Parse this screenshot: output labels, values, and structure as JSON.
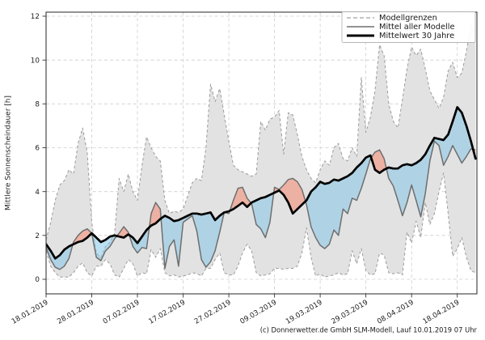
{
  "figure": {
    "background": "#ffffff"
  },
  "footer": {
    "text": "(c) Donnerwetter.de GmbH SLM-Modell, Lauf 10.01.2019 07 Uhr"
  },
  "legend": {
    "position": "top-right",
    "items": [
      {
        "label": "Modellgrenzen",
        "style": "dashed-gray"
      },
      {
        "label": "Mittel aller Modelle",
        "style": "solid-gray"
      },
      {
        "label": "Mittelwert 30 Jahre",
        "style": "solid-black-thick"
      }
    ]
  },
  "chart_data": {
    "type": "line",
    "title": "",
    "xlabel": "",
    "ylabel": "Mittlere Sonnenscheindauer [h]",
    "grid": true,
    "legend_position": "top-right",
    "ylim": [
      -0.7,
      12.2
    ],
    "y_ticks": [
      0,
      2,
      4,
      6,
      8,
      10,
      12
    ],
    "x_unit": "days, daily values from 18.01.2019 to 22.04.2019",
    "x_tick_days": [
      0,
      10,
      20,
      30,
      40,
      50,
      60,
      70,
      80,
      90
    ],
    "x_tick_labels": [
      "18.01.2019",
      "28.01.2019",
      "07.02.2019",
      "17.02.2019",
      "27.02.2019",
      "09.03.2019",
      "19.03.2019",
      "29.03.2019",
      "08.04.2019",
      "18.04.2019"
    ],
    "series": [
      {
        "name": "Modellgrenzen (oberes Band)",
        "role": "envelope-max",
        "values": [
          1.8,
          2.6,
          3.6,
          4.3,
          4.5,
          5.0,
          4.8,
          6.2,
          6.9,
          5.8,
          2.6,
          1.2,
          1.0,
          1.5,
          1.7,
          2.1,
          4.6,
          4.0,
          4.8,
          4.0,
          3.6,
          5.2,
          6.5,
          6.0,
          5.6,
          5.4,
          3.6,
          3.0,
          3.1,
          3.05,
          3.2,
          3.8,
          4.4,
          4.6,
          4.5,
          6.0,
          8.9,
          8.1,
          8.7,
          7.5,
          6.3,
          5.2,
          5.0,
          4.9,
          4.8,
          4.7,
          4.8,
          7.2,
          6.8,
          7.3,
          7.4,
          7.7,
          5.7,
          7.6,
          7.5,
          6.6,
          5.6,
          5.0,
          4.6,
          4.4,
          5.0,
          5.4,
          5.2,
          6.0,
          6.2,
          5.5,
          5.4,
          6.0,
          5.6,
          9.2,
          6.7,
          7.4,
          8.6,
          10.7,
          10.2,
          8.0,
          7.2,
          6.9,
          8.2,
          9.6,
          10.6,
          10.2,
          10.5,
          9.6,
          8.6,
          8.2,
          7.8,
          8.3,
          9.5,
          9.9,
          9.2,
          9.4,
          10.4,
          11.6,
          11.3
        ]
      },
      {
        "name": "Modellgrenzen (unteres Band)",
        "role": "envelope-min",
        "values": [
          1.3,
          0.6,
          0.3,
          0.1,
          0.1,
          0.1,
          0.3,
          0.6,
          0.75,
          0.3,
          0.15,
          0.6,
          0.6,
          0.9,
          0.7,
          0.2,
          0.1,
          0.5,
          0.9,
          0.7,
          0.15,
          0.3,
          0.25,
          1.35,
          1.0,
          1.4,
          0.3,
          0.15,
          0.2,
          0.1,
          0.15,
          0.2,
          0.3,
          0.25,
          0.15,
          0.5,
          0.5,
          0.9,
          1.2,
          0.3,
          0.2,
          0.2,
          0.6,
          1.2,
          1.6,
          1.3,
          0.3,
          0.15,
          0.2,
          0.25,
          0.5,
          0.5,
          0.45,
          0.5,
          0.5,
          0.6,
          1.2,
          2.35,
          1.0,
          0.15,
          0.25,
          0.1,
          0.15,
          0.2,
          0.3,
          0.2,
          0.25,
          1.3,
          0.7,
          1.4,
          0.4,
          0.2,
          0.25,
          1.2,
          1.1,
          0.3,
          0.25,
          0.3,
          0.2,
          2.15,
          1.65,
          2.65,
          1.9,
          3.5,
          2.5,
          3.0,
          4.0,
          4.85,
          3.0,
          1.05,
          1.4,
          1.9,
          1.0,
          0.4,
          0.3
        ]
      },
      {
        "name": "Mittel aller Modelle",
        "role": "model-mean",
        "values": [
          1.45,
          0.9,
          0.55,
          0.45,
          0.6,
          0.95,
          1.7,
          2.0,
          2.2,
          2.3,
          2.1,
          1.0,
          0.85,
          1.3,
          1.5,
          1.85,
          2.1,
          2.4,
          2.15,
          1.5,
          1.2,
          1.45,
          1.4,
          3.0,
          3.5,
          3.2,
          0.5,
          1.5,
          1.8,
          0.6,
          2.6,
          2.75,
          2.9,
          2.2,
          0.9,
          0.55,
          0.8,
          1.3,
          2.15,
          3.05,
          3.0,
          3.6,
          4.15,
          4.2,
          3.7,
          3.45,
          2.5,
          2.3,
          1.9,
          2.6,
          4.2,
          4.1,
          4.3,
          4.55,
          4.6,
          4.45,
          4.1,
          3.4,
          2.4,
          1.9,
          1.55,
          1.4,
          1.6,
          2.25,
          2.0,
          3.2,
          3.0,
          3.7,
          3.6,
          4.15,
          4.8,
          5.5,
          5.8,
          5.9,
          5.5,
          4.6,
          4.25,
          3.6,
          2.9,
          3.5,
          4.3,
          3.6,
          2.85,
          3.9,
          5.4,
          6.3,
          6.1,
          5.2,
          5.6,
          6.1,
          5.7,
          5.3,
          5.6,
          5.95,
          5.9
        ]
      },
      {
        "name": "Mittelwert 30 Jahre",
        "role": "climate-mean",
        "values": [
          1.6,
          1.3,
          0.95,
          1.1,
          1.35,
          1.5,
          1.6,
          1.7,
          1.75,
          1.9,
          2.1,
          1.9,
          1.7,
          1.8,
          1.95,
          2.0,
          1.95,
          1.9,
          2.05,
          1.9,
          1.65,
          1.95,
          2.25,
          2.45,
          2.55,
          2.75,
          2.9,
          2.8,
          2.65,
          2.7,
          2.8,
          2.9,
          3.0,
          3.0,
          2.95,
          3.0,
          3.05,
          2.7,
          2.9,
          3.05,
          3.1,
          3.2,
          3.35,
          3.5,
          3.3,
          3.5,
          3.6,
          3.7,
          3.75,
          3.85,
          3.95,
          4.05,
          3.85,
          3.5,
          3.0,
          3.2,
          3.4,
          3.6,
          4.0,
          4.2,
          4.45,
          4.35,
          4.4,
          4.55,
          4.5,
          4.6,
          4.7,
          4.85,
          5.1,
          5.3,
          5.55,
          5.65,
          5.0,
          4.85,
          5.0,
          5.1,
          5.05,
          5.05,
          5.2,
          5.25,
          5.2,
          5.3,
          5.45,
          5.7,
          6.1,
          6.45,
          6.4,
          6.35,
          6.6,
          7.2,
          7.85,
          7.6,
          7.0,
          6.3,
          5.5
        ]
      }
    ],
    "colors": {
      "envelope_fill": "#e2e2e2",
      "envelope_edge": "#9b9b9b",
      "model_mean_line": "#6e6e6e",
      "climate_line": "#000000",
      "above_climate_fill": "rgba(248,132,106,0.52)",
      "below_climate_fill": "rgba(133,198,231,0.55)",
      "grid": "#cdcdcd"
    }
  }
}
